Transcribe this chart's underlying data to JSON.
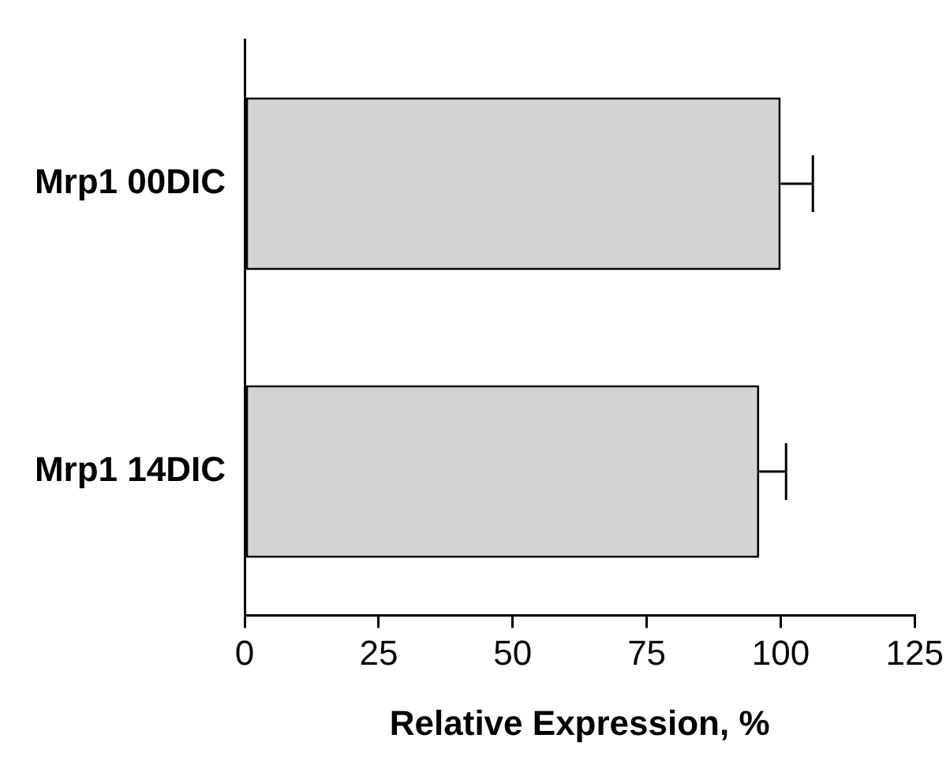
{
  "chart_data": {
    "type": "bar",
    "orientation": "horizontal",
    "xlabel": "Relative Expression, %",
    "categories": [
      "Mrp1 00DIC",
      "Mrp1 14DIC"
    ],
    "values": [
      100,
      96
    ],
    "errors": [
      [
        100,
        106
      ],
      [
        96,
        101
      ]
    ],
    "color": "#d3d3d3",
    "xlim": [
      0,
      125
    ],
    "xticks": [
      0,
      25,
      50,
      75,
      100,
      125
    ],
    "grid": false,
    "legend": false
  }
}
